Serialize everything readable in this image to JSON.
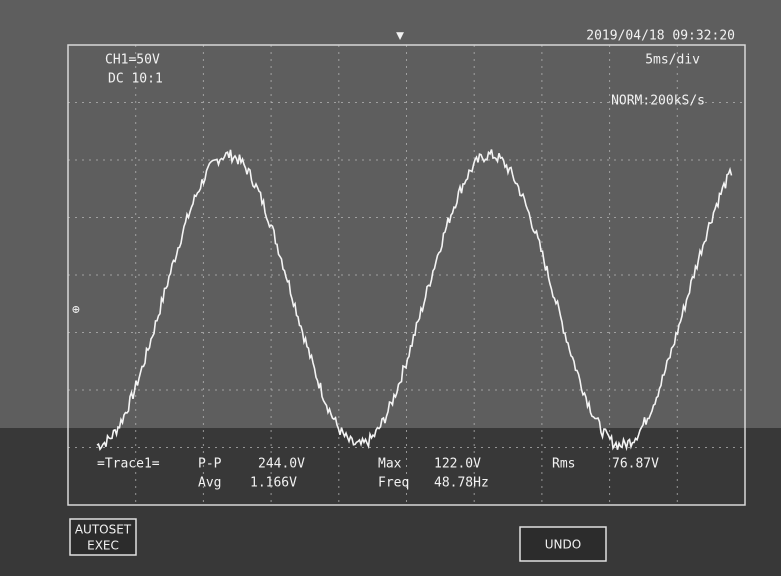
{
  "header": {
    "channel": "CH1=50V",
    "coupling": "DC 10:1",
    "datetime": "2019/04/18 09:32:20",
    "timebase": "5ms/div",
    "mode": "NORM:200kS/s"
  },
  "measurements": {
    "title": "=Trace1=",
    "items": [
      {
        "label": "P-P",
        "value": "244.0V"
      },
      {
        "label": "Avg",
        "value": "1.166V"
      },
      {
        "label": "Max",
        "value": "122.0V"
      },
      {
        "label": "Freq",
        "value": "48.78Hz"
      },
      {
        "label": "Rms",
        "value": "76.87V"
      }
    ]
  },
  "buttons": [
    {
      "lines": [
        "AUTOSET",
        "EXEC"
      ]
    },
    {
      "lines": [
        "UNDO"
      ]
    }
  ]
}
